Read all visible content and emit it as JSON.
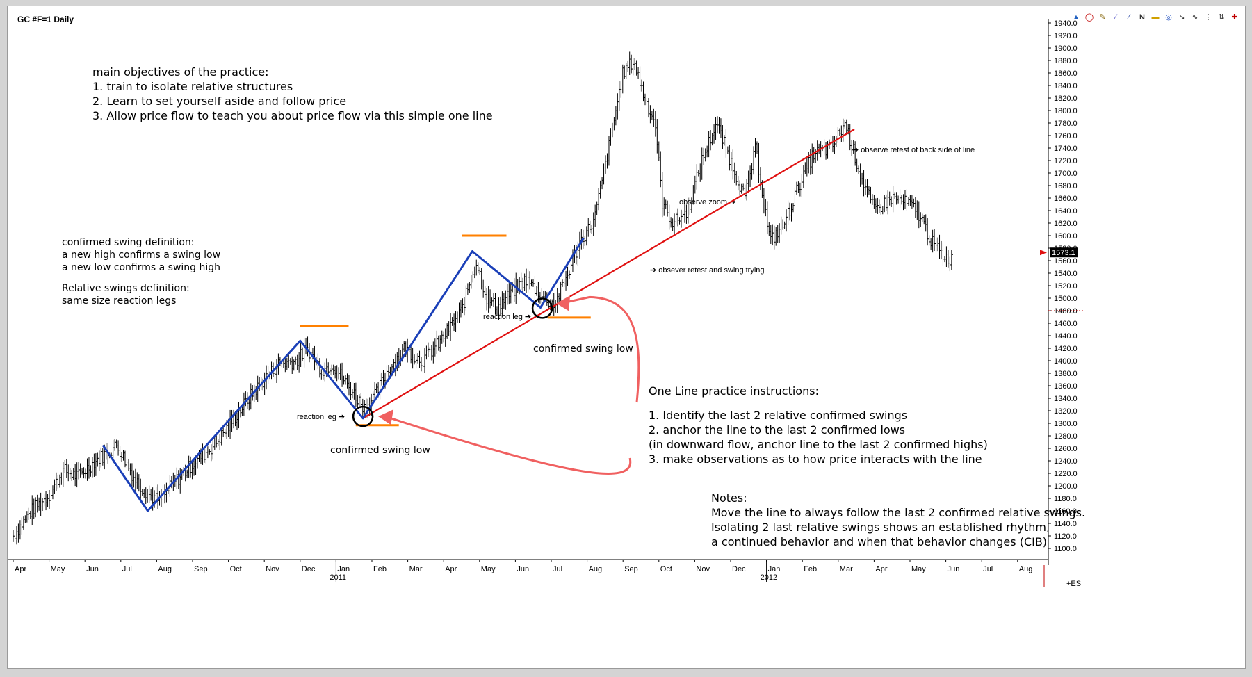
{
  "window": {
    "title": "GC #F=1 Daily"
  },
  "toolbar": {
    "icons": [
      "cursor-icon",
      "circle-icon",
      "pencil-icon",
      "fib-icon",
      "trendline-icon",
      "n-icon",
      "rect-icon",
      "target-icon",
      "arrow-icon",
      "wave-icon",
      "bar-icon",
      "zoom-icon",
      "crosshair-icon"
    ],
    "n_label": "N"
  },
  "texts": {
    "objectives": {
      "heading": "main objectives of the practice:",
      "l1": "1. train to isolate relative structures",
      "l2": "2. Learn to set yourself aside and follow price",
      "l3": "3. Allow price flow to teach you about price flow via this simple one line"
    },
    "definitions": {
      "d1": "confirmed swing definition:",
      "d2": "a new high confirms a swing low",
      "d3": "a new low confirms a swing high",
      "d4": "Relative swings definition:",
      "d5": "same size reaction legs"
    },
    "instructions": {
      "heading": "One Line practice instructions:",
      "l1": "1. Identify the last 2 relative confirmed swings",
      "l2": "2. anchor the line to the last 2 confirmed lows",
      "l3": "(in downward flow, anchor line to the last 2 confirmed highs)",
      "l4": "3. make observations as to how price interacts with the line"
    },
    "notes": {
      "heading": "Notes:",
      "l1": "Move the line to always follow the last 2 confirmed relative swings.",
      "l2": "Isolating 2 last relative swings shows an established rhythm,",
      "l3": "a continued behavior and when that behavior changes (CIB)"
    },
    "annotations": {
      "reaction1": "reaction leg ➔",
      "reaction2": "reaction leg ➔",
      "csl1": "confirmed swing low",
      "csl2": "confirmed swing low",
      "retest_back": "➔ observe retest of back side of line",
      "observe_zoom": "observe zoom ➔",
      "retest_swing": "➔ obsever retest and swing trying"
    }
  },
  "chart_data": {
    "type": "bar",
    "title": "GC #F=1 Daily",
    "symbol": "GC #F=1",
    "interval": "Daily",
    "ylim": [
      1100,
      1940
    ],
    "y_ticks": [
      1100,
      1120,
      1140,
      1160,
      1180,
      1200,
      1220,
      1240,
      1260,
      1280,
      1300,
      1320,
      1340,
      1360,
      1380,
      1400,
      1420,
      1440,
      1460,
      1480,
      1500,
      1520,
      1540,
      1560,
      1580,
      1600,
      1620,
      1640,
      1660,
      1680,
      1700,
      1720,
      1740,
      1760,
      1780,
      1800,
      1820,
      1840,
      1860,
      1880,
      1900,
      1920,
      1940
    ],
    "y_tick_labels": [
      "1100.0",
      "1120.0",
      "1140.0",
      "1160.0",
      "1180.0",
      "1200.0",
      "1220.0",
      "1240.0",
      "1260.0",
      "1280.0",
      "1300.0",
      "1320.0",
      "1340.0",
      "1360.0",
      "1380.0",
      "1400.0",
      "1420.0",
      "1440.0",
      "1460.0",
      "1480.0",
      "1500.0",
      "1520.0",
      "1540.0",
      "1560.0",
      "1580.0",
      "1600.0",
      "1620.0",
      "1640.0",
      "1660.0",
      "1680.0",
      "1700.0",
      "1720.0",
      "1740.0",
      "1760.0",
      "1780.0",
      "1800.0",
      "1820.0",
      "1840.0",
      "1860.0",
      "1880.0",
      "1900.0",
      "1920.0",
      "1940.0"
    ],
    "x_ticks": [
      {
        "label": "Apr",
        "m": 0
      },
      {
        "label": "May",
        "m": 1
      },
      {
        "label": "Jun",
        "m": 2
      },
      {
        "label": "Jul",
        "m": 3
      },
      {
        "label": "Aug",
        "m": 4
      },
      {
        "label": "Sep",
        "m": 5
      },
      {
        "label": "Oct",
        "m": 6
      },
      {
        "label": "Nov",
        "m": 7
      },
      {
        "label": "Dec",
        "m": 8
      },
      {
        "label": "Jan",
        "m": 9,
        "year": "2011"
      },
      {
        "label": "Feb",
        "m": 10
      },
      {
        "label": "Mar",
        "m": 11
      },
      {
        "label": "Apr",
        "m": 12
      },
      {
        "label": "May",
        "m": 13
      },
      {
        "label": "Jun",
        "m": 14
      },
      {
        "label": "Jul",
        "m": 15
      },
      {
        "label": "Aug",
        "m": 16
      },
      {
        "label": "Sep",
        "m": 17
      },
      {
        "label": "Oct",
        "m": 18
      },
      {
        "label": "Nov",
        "m": 19
      },
      {
        "label": "Dec",
        "m": 20
      },
      {
        "label": "Jan",
        "m": 21,
        "year": "2012"
      },
      {
        "label": "Feb",
        "m": 22
      },
      {
        "label": "Mar",
        "m": 23
      },
      {
        "label": "Apr",
        "m": 24
      },
      {
        "label": "May",
        "m": 25
      },
      {
        "label": "Jun",
        "m": 26
      },
      {
        "label": "Jul",
        "m": 27
      },
      {
        "label": "Aug",
        "m": 28
      }
    ],
    "last_price": 1573.1,
    "last_price_label": "1573.1",
    "reference_level": 1480,
    "axis_corner_label": "+ES",
    "price_anchors": [
      [
        0,
        1120
      ],
      [
        0.5,
        1160
      ],
      [
        1,
        1185
      ],
      [
        1.4,
        1225
      ],
      [
        1.8,
        1215
      ],
      [
        2.3,
        1240
      ],
      [
        2.9,
        1265
      ],
      [
        3.4,
        1210
      ],
      [
        3.8,
        1185
      ],
      [
        4.1,
        1175
      ],
      [
        4.4,
        1200
      ],
      [
        5,
        1235
      ],
      [
        5.6,
        1265
      ],
      [
        6,
        1295
      ],
      [
        6.5,
        1335
      ],
      [
        7,
        1370
      ],
      [
        7.4,
        1395
      ],
      [
        7.9,
        1400
      ],
      [
        8.2,
        1420
      ],
      [
        8.6,
        1385
      ],
      [
        8.9,
        1395
      ],
      [
        9.2,
        1370
      ],
      [
        9.6,
        1340
      ],
      [
        9.8,
        1325
      ],
      [
        10.1,
        1345
      ],
      [
        10.4,
        1380
      ],
      [
        10.9,
        1420
      ],
      [
        11.4,
        1400
      ],
      [
        11.9,
        1430
      ],
      [
        12.5,
        1480
      ],
      [
        12.9,
        1560
      ],
      [
        13.2,
        1500
      ],
      [
        13.5,
        1485
      ],
      [
        13.9,
        1510
      ],
      [
        14.3,
        1530
      ],
      [
        14.8,
        1500
      ],
      [
        15.1,
        1490
      ],
      [
        15.4,
        1530
      ],
      [
        15.8,
        1590
      ],
      [
        16.2,
        1625
      ],
      [
        16.6,
        1740
      ],
      [
        17,
        1860
      ],
      [
        17.3,
        1880
      ],
      [
        17.6,
        1820
      ],
      [
        17.9,
        1780
      ],
      [
        18.1,
        1650
      ],
      [
        18.4,
        1620
      ],
      [
        18.8,
        1640
      ],
      [
        19.2,
        1720
      ],
      [
        19.6,
        1780
      ],
      [
        20,
        1720
      ],
      [
        20.4,
        1660
      ],
      [
        20.7,
        1740
      ],
      [
        21.1,
        1590
      ],
      [
        21.5,
        1620
      ],
      [
        21.9,
        1680
      ],
      [
        22.3,
        1730
      ],
      [
        22.8,
        1740
      ],
      [
        23.2,
        1780
      ],
      [
        23.6,
        1700
      ],
      [
        24,
        1640
      ],
      [
        24.5,
        1660
      ],
      [
        25,
        1650
      ],
      [
        25.3,
        1630
      ],
      [
        25.6,
        1590
      ],
      [
        25.9,
        1570
      ],
      [
        26.2,
        1560
      ]
    ],
    "swing_path_blue": [
      [
        2.5,
        1265
      ],
      [
        3.75,
        1160
      ],
      [
        8.0,
        1432
      ],
      [
        9.75,
        1308
      ],
      [
        12.8,
        1575
      ],
      [
        14.7,
        1485
      ],
      [
        15.9,
        1596
      ]
    ],
    "trend_line_red": [
      [
        9.75,
        1308
      ],
      [
        23.45,
        1770
      ]
    ],
    "orange_levels": [
      {
        "x0": 8.0,
        "x1": 9.35,
        "y": 1455
      },
      {
        "x0": 9.55,
        "x1": 10.75,
        "y": 1297
      },
      {
        "x0": 12.5,
        "x1": 13.75,
        "y": 1600
      },
      {
        "x0": 14.9,
        "x1": 16.1,
        "y": 1469
      }
    ],
    "circles": [
      [
        9.75,
        1311
      ],
      [
        14.75,
        1484
      ]
    ]
  }
}
